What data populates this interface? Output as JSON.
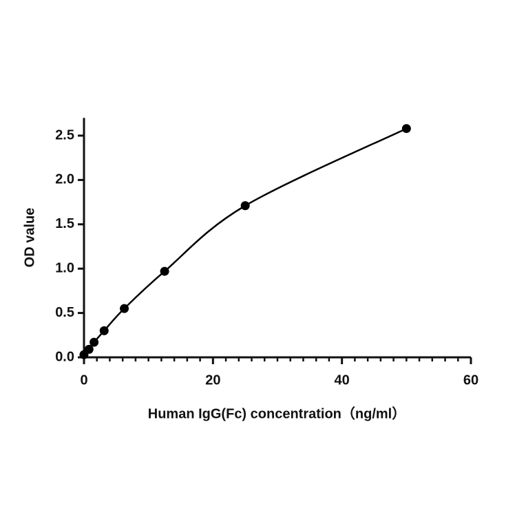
{
  "chart_data": {
    "type": "scatter",
    "x_label": "Human IgG(Fc)  concentration（ng/ml）",
    "y_label": "OD value",
    "x": [
      0,
      0.78,
      1.56,
      3.125,
      6.25,
      12.5,
      25,
      50
    ],
    "values": [
      0.03,
      0.09,
      0.17,
      0.3,
      0.55,
      0.97,
      1.71,
      2.58
    ],
    "color": "#000000",
    "fit_curve": true,
    "xlim": [
      0,
      60
    ],
    "ylim": [
      0,
      2.7
    ],
    "xticks": [
      0,
      20,
      40,
      60
    ],
    "x_minor_ticks": [
      2,
      4,
      6,
      8,
      10,
      12,
      14,
      16,
      18,
      22,
      24,
      26,
      28,
      30,
      32,
      34,
      36,
      38,
      42,
      44,
      46,
      48,
      50,
      52,
      54,
      56,
      58
    ],
    "yticks": [
      {
        "value": 0,
        "label": "0.0"
      },
      {
        "value": 0.5,
        "label": "0.5"
      },
      {
        "value": 1,
        "label": "1.0"
      },
      {
        "value": 1.5,
        "label": "1.5"
      },
      {
        "value": 2,
        "label": "2.0"
      },
      {
        "value": 2.5,
        "label": "2.5"
      }
    ],
    "grid": false
  }
}
